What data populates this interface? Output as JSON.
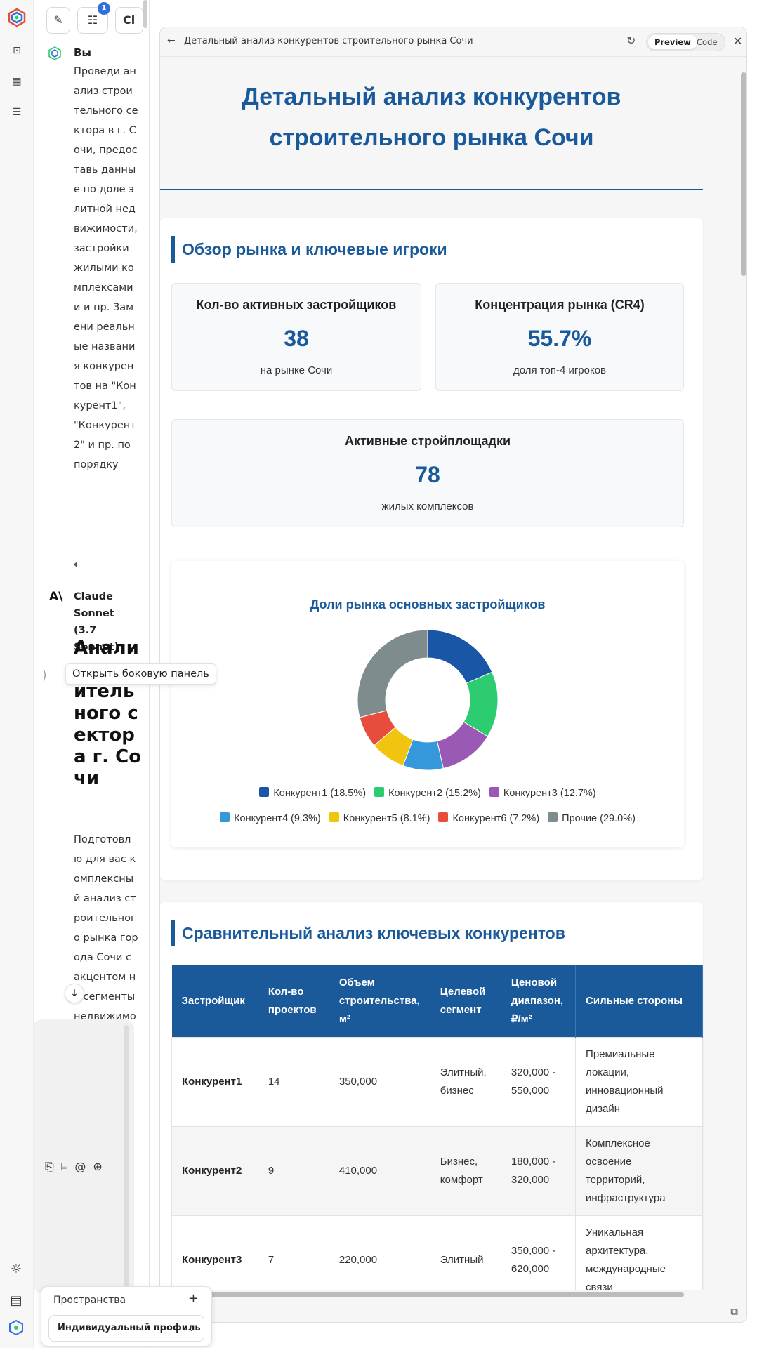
{
  "chat": {
    "user_author": "Вы",
    "user_message": "Проведи анализ строительного сектора в г. Сочи, предоставь данные по доле элитной недвижимости, застройки жилыми комплексами и и пр. Замени реальные названия конкурентов на \"Конкурент1\", \"Конкурент2\" и пр. по порядку",
    "ai_author": "Claude Sonnet (3.7 Sonnet)",
    "ai_title": "Анализ строительного сектора г. Сочи",
    "ai_text": "Подготовлю для вас комплексный анализ строительного рынка города Сочи с акцентом на сегменты недвижимости",
    "top_badge": "1",
    "top_partial": "Cl"
  },
  "tooltip": "Открыть боковую панель",
  "spaces": {
    "label": "Пространства",
    "selected": "Индивидуальный профиль"
  },
  "panel": {
    "title": "Детальный анализ конкурентов строительного рынка Сочи",
    "tab_preview": "Preview",
    "tab_code": "Code"
  },
  "doc": {
    "title_line1": "Детальный анализ конкурентов",
    "title_line2": "строительного рынка Сочи",
    "section1": "Обзор рынка и ключевые игроки",
    "stats": [
      {
        "title": "Кол-во активных застройщиков",
        "value": "38",
        "sub": "на рынке Сочи"
      },
      {
        "title": "Концентрация рынка (CR4)",
        "value": "55.7%",
        "sub": "доля топ-4 игроков"
      },
      {
        "title": "Активные стройплощадки",
        "value": "78",
        "sub": "жилых комплексов"
      }
    ],
    "section2": "Сравнительный анализ ключевых конкурентов",
    "table": {
      "headers": [
        "Застройщик",
        "Кол-во проектов",
        "Объем строительства, м²",
        "Целевой сегмент",
        "Ценовой диапазон, ₽/м²",
        "Сильные стороны"
      ],
      "rows": [
        [
          "Конкурент1",
          "14",
          "350,000",
          "Элитный, бизнес",
          "320,000 - 550,000",
          "Премиальные локации, инновационный дизайн"
        ],
        [
          "Конкурент2",
          "9",
          "410,000",
          "Бизнес, комфорт",
          "180,000 - 320,000",
          "Комплексное освоение территорий, инфраструктура"
        ],
        [
          "Конкурент3",
          "7",
          "220,000",
          "Элитный",
          "350,000 - 620,000",
          "Уникальная архитектура, международные связи"
        ]
      ]
    }
  },
  "chart_data": {
    "type": "pie",
    "title": "Доли рынка основных застройщиков",
    "categories": [
      "Конкурент1",
      "Конкурент2",
      "Конкурент3",
      "Конкурент4",
      "Конкурент5",
      "Конкурент6",
      "Прочие"
    ],
    "values": [
      18.5,
      15.2,
      12.7,
      9.3,
      8.1,
      7.2,
      29.0
    ],
    "legend_labels": [
      "Конкурент1 (18.5%)",
      "Конкурент2 (15.2%)",
      "Конкурент3 (12.7%)",
      "Конкурент4 (9.3%)",
      "Конкурент5 (8.1%)",
      "Конкурент6 (7.2%)",
      "Прочие (29.0%)"
    ],
    "colors": [
      "#1a56a6",
      "#2ecc71",
      "#9b59b6",
      "#3498db",
      "#f1c40f",
      "#e74c3c",
      "#7f8c8d"
    ],
    "legend_position": "bottom",
    "donut": true
  },
  "icons": {
    "rail": [
      "app-logo-icon",
      "terminal-icon",
      "table-icon",
      "list-icon"
    ],
    "rail_bottom": [
      "sun-icon",
      "document-icon",
      "profile-logo-icon"
    ]
  }
}
